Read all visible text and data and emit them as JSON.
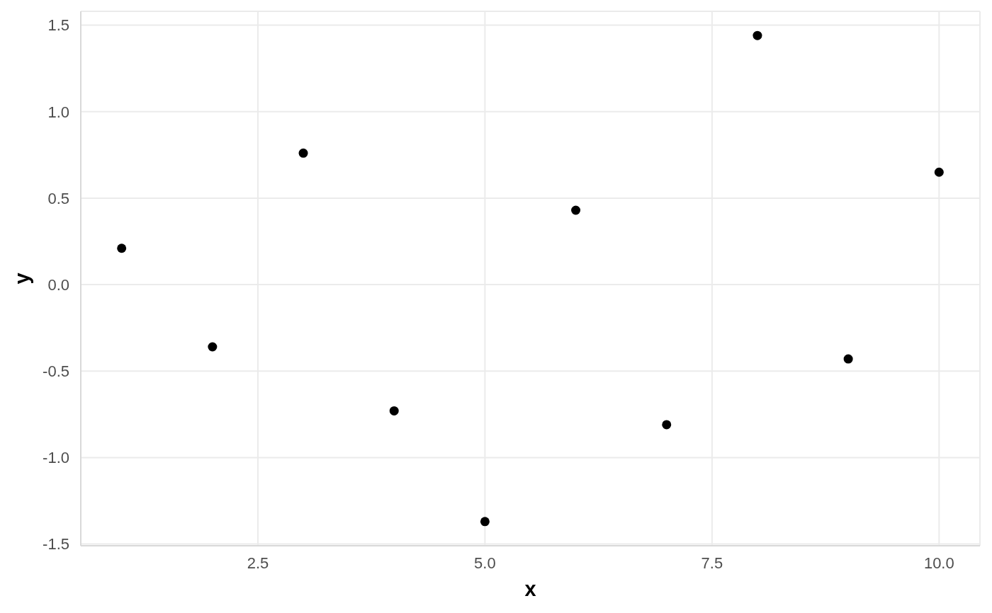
{
  "chart_data": {
    "type": "scatter",
    "xlabel": "x",
    "ylabel": "y",
    "x": [
      1,
      2,
      3,
      4,
      5,
      6,
      7,
      8,
      9,
      10
    ],
    "values": [
      0.21,
      -0.36,
      0.76,
      -0.73,
      -1.37,
      0.43,
      -0.81,
      1.44,
      -0.43,
      0.65
    ],
    "color": "#000000",
    "xlim": [
      0.55,
      10.45
    ],
    "ylim": [
      -1.51,
      1.58
    ],
    "xticks": [
      2.5,
      {
        "value": 5,
        "label": "5.0"
      },
      7.5,
      {
        "value": 10,
        "label": "10.0"
      }
    ],
    "yticks": [
      -1.5,
      {
        "value": -1,
        "label": "-1.0"
      },
      -0.5,
      {
        "value": 0,
        "label": "0.0"
      },
      0.5,
      {
        "value": 1,
        "label": "1.0"
      },
      1.5
    ],
    "grid": true,
    "marker": "circle"
  }
}
